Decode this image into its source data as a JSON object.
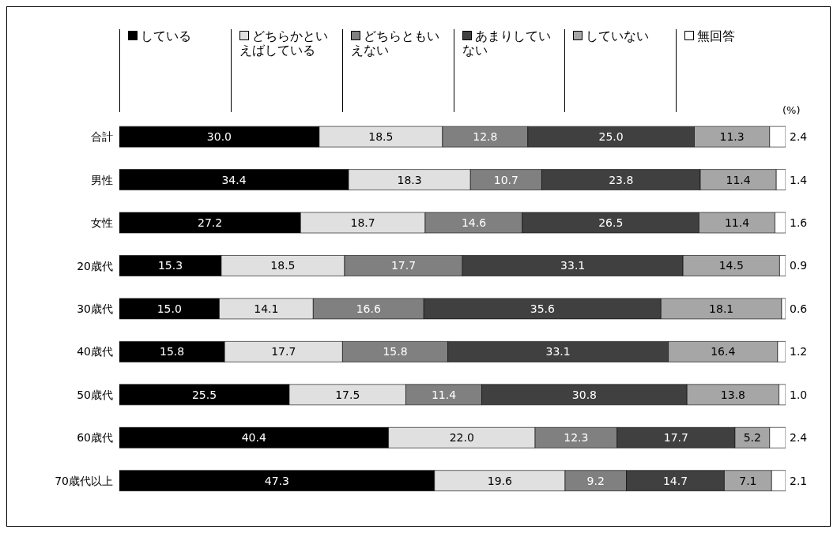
{
  "chart_data": {
    "type": "bar",
    "orientation": "horizontal",
    "stacked": true,
    "categories": [
      "合計",
      "男性",
      "女性",
      "20歳代",
      "30歳代",
      "40歳代",
      "50歳代",
      "60歳代",
      "70歳代以上"
    ],
    "series": [
      {
        "name": "している",
        "color": "#000000",
        "values": [
          30.0,
          34.4,
          27.2,
          15.3,
          15.0,
          15.8,
          25.5,
          40.4,
          47.3
        ],
        "value_labels": [
          "30.0",
          "34.4",
          "27.2",
          "15.3",
          "15.0",
          "15.8",
          "25.5",
          "40.4",
          "47.3"
        ]
      },
      {
        "name": "どちらかといえばしている",
        "color": "#e0e0e0",
        "values": [
          18.5,
          18.3,
          18.7,
          18.5,
          14.1,
          17.7,
          17.5,
          22.0,
          19.6
        ],
        "value_labels": [
          "18.5",
          "18.3",
          "18.7",
          "18.5",
          "14.1",
          "17.7",
          "17.5",
          "22.0",
          "19.6"
        ]
      },
      {
        "name": "どちらともいえない",
        "color": "#808080",
        "values": [
          12.8,
          10.7,
          14.6,
          17.7,
          16.6,
          15.8,
          11.4,
          12.3,
          9.2
        ],
        "value_labels": [
          "12.8",
          "10.7",
          "14.6",
          "17.7",
          "16.6",
          "15.8",
          "11.4",
          "12.3",
          "9.2"
        ]
      },
      {
        "name": "あまりしていない",
        "color": "#404040",
        "values": [
          25.0,
          23.8,
          26.5,
          33.1,
          35.6,
          33.1,
          30.8,
          17.7,
          14.7
        ],
        "value_labels": [
          "25.0",
          "23.8",
          "26.5",
          "33.1",
          "35.6",
          "33.1",
          "30.8",
          "17.7",
          "14.7"
        ]
      },
      {
        "name": "していない",
        "color": "#a6a6a6",
        "values": [
          11.3,
          11.4,
          11.4,
          14.5,
          18.1,
          16.4,
          13.8,
          5.2,
          7.1
        ],
        "value_labels": [
          "11.3",
          "11.4",
          "11.4",
          "14.5",
          "18.1",
          "16.4",
          "13.8",
          "5.2",
          "7.1"
        ]
      },
      {
        "name": "無回答",
        "color": "#ffffff",
        "values": [
          2.4,
          1.4,
          1.6,
          0.9,
          0.6,
          1.2,
          1.0,
          2.4,
          2.1
        ],
        "value_labels": [
          "2.4",
          "1.4",
          "1.6",
          "0.9",
          "0.6",
          "1.2",
          "1.0",
          "2.4",
          "2.1"
        ]
      }
    ],
    "xlim": [
      0,
      100
    ],
    "tick_labels": "y",
    "legend": "top",
    "annotations": [
      "(%)"
    ]
  }
}
